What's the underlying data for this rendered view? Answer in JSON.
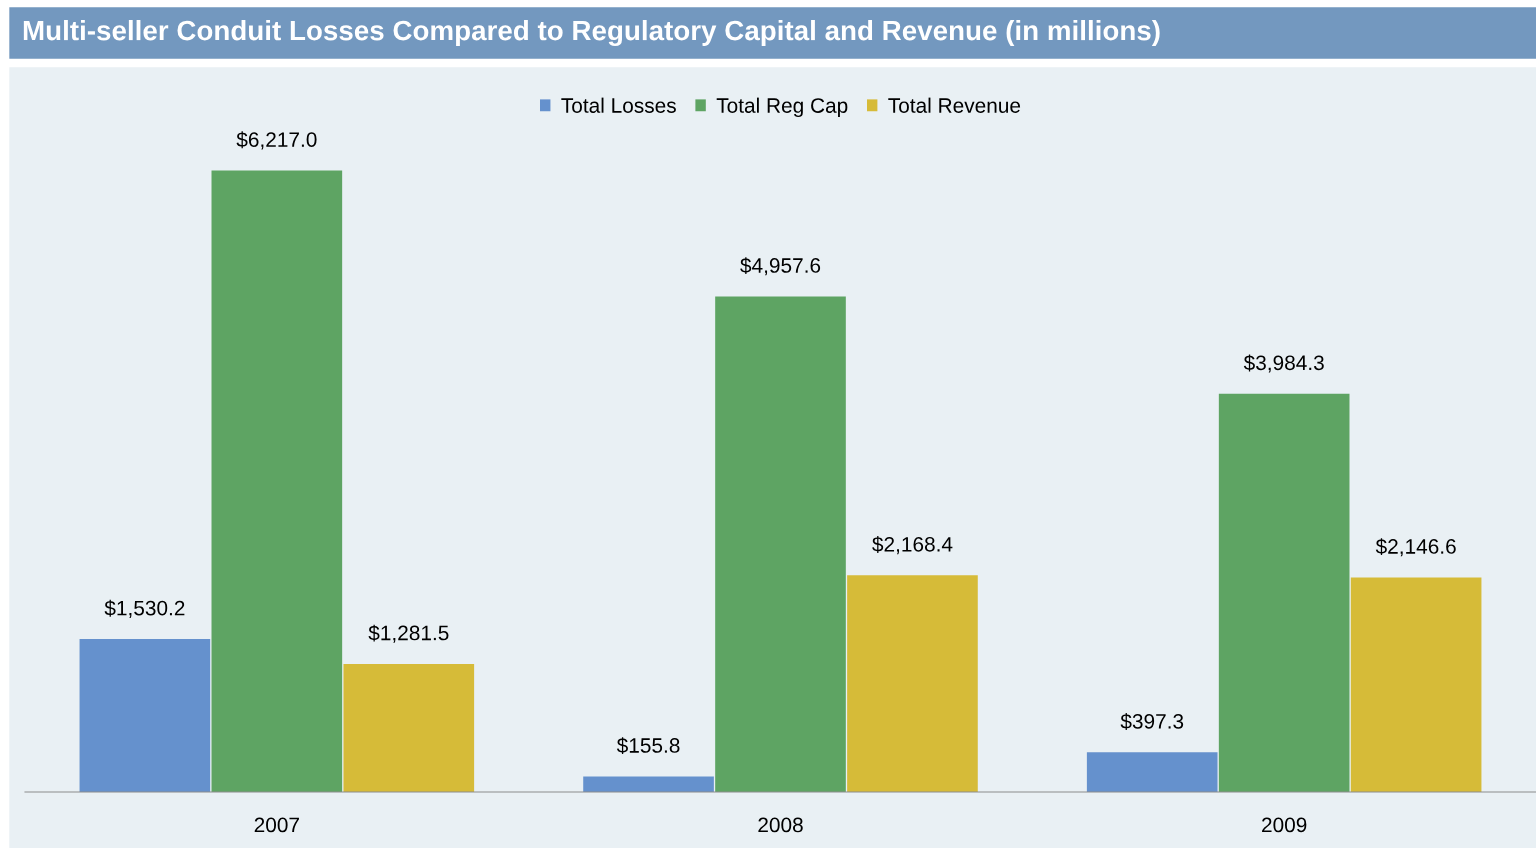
{
  "chart_data": {
    "type": "bar",
    "title": "Multi-seller Conduit Losses Compared to Regulatory Capital and Revenue (in millions)",
    "categories": [
      "2007",
      "2008",
      "2009"
    ],
    "series": [
      {
        "name": "Total Losses",
        "color": "#6591cd",
        "values": [
          1530.2,
          155.8,
          397.3
        ],
        "value_labels": [
          "$1,530.2",
          "$155.8",
          "$397.3"
        ]
      },
      {
        "name": "Total Reg Cap",
        "color": "#5ea463",
        "values": [
          6217.0,
          4957.6,
          3984.3
        ],
        "value_labels": [
          "$6,217.0",
          "$4,957.6",
          "$3,984.3"
        ]
      },
      {
        "name": "Total Revenue",
        "color": "#d6bb38",
        "values": [
          1281.5,
          2168.4,
          2146.6
        ],
        "value_labels": [
          "$1,281.5",
          "$2,168.4",
          "$2,146.6"
        ]
      }
    ],
    "legend": "top"
  }
}
